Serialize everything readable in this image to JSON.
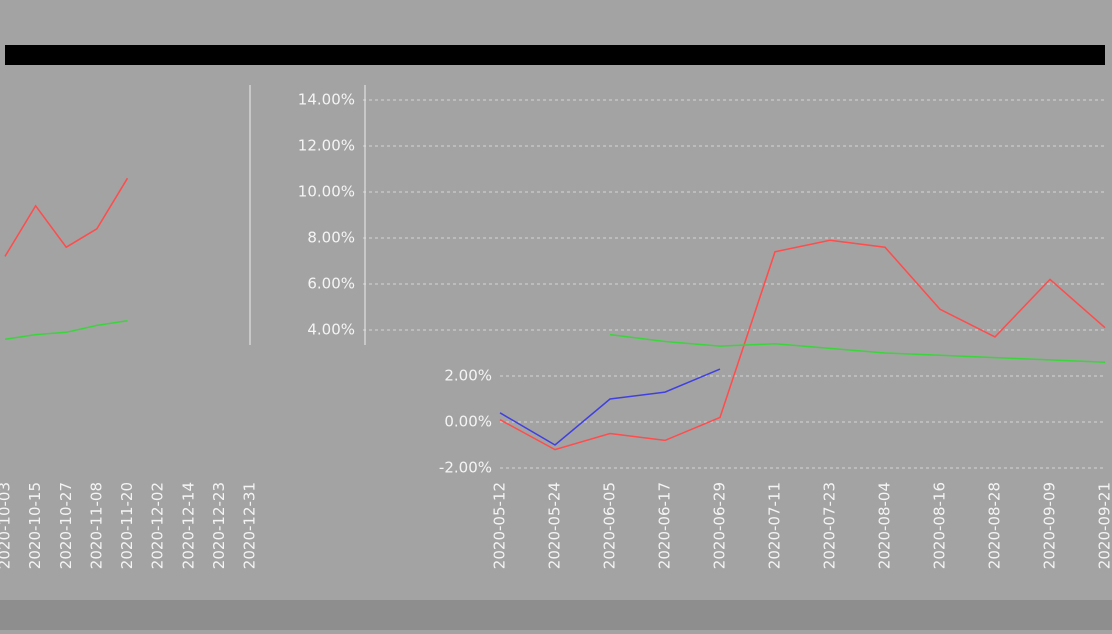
{
  "chart_data": [
    {
      "type": "line",
      "categories": [
        "2020-10-03",
        "2020-10-15",
        "2020-10-27",
        "2020-11-08",
        "2020-11-20",
        "2020-12-02",
        "2020-12-14",
        "2020-12-23",
        "2020-12-31"
      ],
      "series": [
        {
          "color": "#ff4c4c",
          "values": [
            7.2,
            9.4,
            7.6,
            8.4,
            10.6,
            null,
            null,
            null,
            null
          ]
        },
        {
          "color": "#3cd43c",
          "values": [
            3.6,
            3.8,
            3.9,
            4.2,
            4.4,
            null,
            null,
            null,
            null
          ]
        }
      ],
      "ylim": [
        -2,
        14
      ]
    },
    {
      "type": "line",
      "categories": [
        "2020-05-12",
        "2020-05-24",
        "2020-06-05",
        "2020-06-17",
        "2020-06-29",
        "2020-07-11",
        "2020-07-23",
        "2020-08-04",
        "2020-08-16",
        "2020-08-28",
        "2020-09-09",
        "2020-09-21"
      ],
      "series": [
        {
          "color": "#ff4c4c",
          "values": [
            0.1,
            -1.2,
            -0.5,
            -0.8,
            0.2,
            7.4,
            7.9,
            7.6,
            4.9,
            3.7,
            6.2,
            4.1
          ]
        },
        {
          "color": "#4040e0",
          "values": [
            0.4,
            -1.0,
            1.0,
            1.3,
            2.3,
            null,
            null,
            null,
            null,
            null,
            null,
            null
          ]
        },
        {
          "color": "#3cd43c",
          "values": [
            null,
            null,
            3.8,
            3.5,
            3.3,
            3.4,
            3.2,
            3.0,
            2.9,
            2.8,
            2.7,
            2.6
          ]
        }
      ],
      "ylim": [
        -2,
        14
      ],
      "yticks": [
        {
          "value": -2,
          "label": "-2.00%"
        },
        {
          "value": 0,
          "label": "0.00%"
        },
        {
          "value": 2,
          "label": "2.00%"
        },
        {
          "value": 4,
          "label": "4.00%"
        },
        {
          "value": 6,
          "label": "6.00%"
        },
        {
          "value": 8,
          "label": "8.00%"
        },
        {
          "value": 10,
          "label": "10.00%"
        },
        {
          "value": 12,
          "label": "12.00%"
        },
        {
          "value": 14,
          "label": "14.00%"
        }
      ],
      "grid": true
    }
  ]
}
